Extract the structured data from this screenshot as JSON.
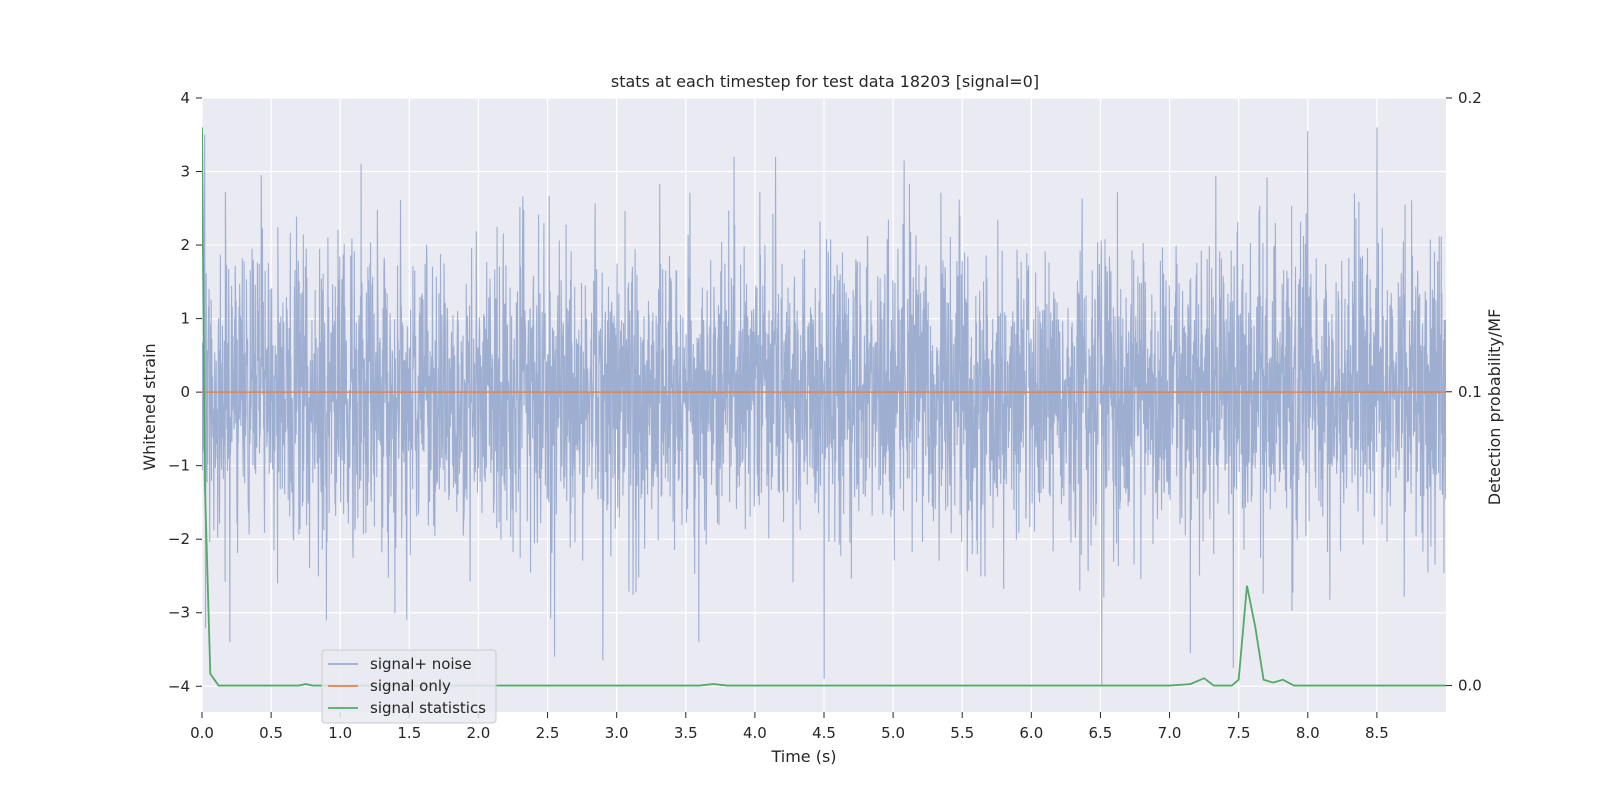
{
  "chart_data": {
    "type": "line",
    "title": "stats at each timestep for test data 18203 [signal=0]",
    "xlabel": "Time (s)",
    "ylabel": "Whitened strain",
    "y2label": "Detection probability/MF",
    "xlim": [
      0,
      9.0
    ],
    "ylim": [
      -4.35,
      4.0
    ],
    "y2lim": [
      -0.009,
      0.2
    ],
    "xticks": [
      "0.0",
      "0.5",
      "1.0",
      "1.5",
      "2.0",
      "2.5",
      "3.0",
      "3.5",
      "4.0",
      "4.5",
      "5.0",
      "5.5",
      "6.0",
      "6.5",
      "7.0",
      "7.5",
      "8.0",
      "8.5"
    ],
    "yticks": [
      "4",
      "3",
      "2",
      "1",
      "0",
      "−1",
      "−2",
      "−3",
      "−4"
    ],
    "y2ticks": [
      "0.2",
      "0.1",
      "0.0"
    ],
    "grid": true,
    "legend_position": "lower-left",
    "series": [
      {
        "name": "signal+ noise",
        "axis": "left",
        "color": "#9aabcf",
        "description": "dense Gaussian-like whitened noise around 0, amplitude mostly within -3.6 to 3.6",
        "notable_peaks": [
          {
            "x": 0.02,
            "y": 3.5
          },
          {
            "x": 0.9,
            "y": -3.1
          },
          {
            "x": 1.15,
            "y": 3.1
          },
          {
            "x": 1.48,
            "y": -3.1
          },
          {
            "x": 2.55,
            "y": -3.6
          },
          {
            "x": 2.9,
            "y": -3.65
          },
          {
            "x": 3.85,
            "y": 3.2
          },
          {
            "x": 4.15,
            "y": 3.2
          },
          {
            "x": 4.5,
            "y": -3.9
          },
          {
            "x": 5.08,
            "y": 3.15
          },
          {
            "x": 6.51,
            "y": -4.0
          },
          {
            "x": 7.15,
            "y": -3.55
          },
          {
            "x": 7.46,
            "y": 3.35
          },
          {
            "x": 7.46,
            "y": -3.75
          },
          {
            "x": 8.0,
            "y": 3.55
          },
          {
            "x": 8.5,
            "y": 3.6
          }
        ]
      },
      {
        "name": "signal only",
        "axis": "left",
        "color": "#dd8452",
        "x": [
          0,
          9.0
        ],
        "y": [
          0,
          0
        ]
      },
      {
        "name": "signal statistics",
        "axis": "right",
        "color": "#55a868",
        "x": [
          0.0,
          0.02,
          0.06,
          0.12,
          0.2,
          0.5,
          0.7,
          0.75,
          0.8,
          1.0,
          2.0,
          3.0,
          3.6,
          3.7,
          3.8,
          4.0,
          5.0,
          6.0,
          7.0,
          7.15,
          7.25,
          7.32,
          7.45,
          7.5,
          7.56,
          7.62,
          7.68,
          7.75,
          7.82,
          7.9,
          8.0,
          8.5,
          9.0
        ],
        "y": [
          0.19,
          0.07,
          0.004,
          0.0,
          0.0,
          0.0,
          0.0,
          0.0005,
          0.0,
          0.0,
          0.0,
          0.0,
          0.0,
          0.0005,
          0.0,
          0.0,
          0.0,
          0.0,
          0.0,
          0.0005,
          0.0025,
          0.0,
          0.0,
          0.002,
          0.034,
          0.02,
          0.002,
          0.001,
          0.002,
          0.0,
          0.0,
          0.0,
          0.0
        ]
      }
    ]
  }
}
